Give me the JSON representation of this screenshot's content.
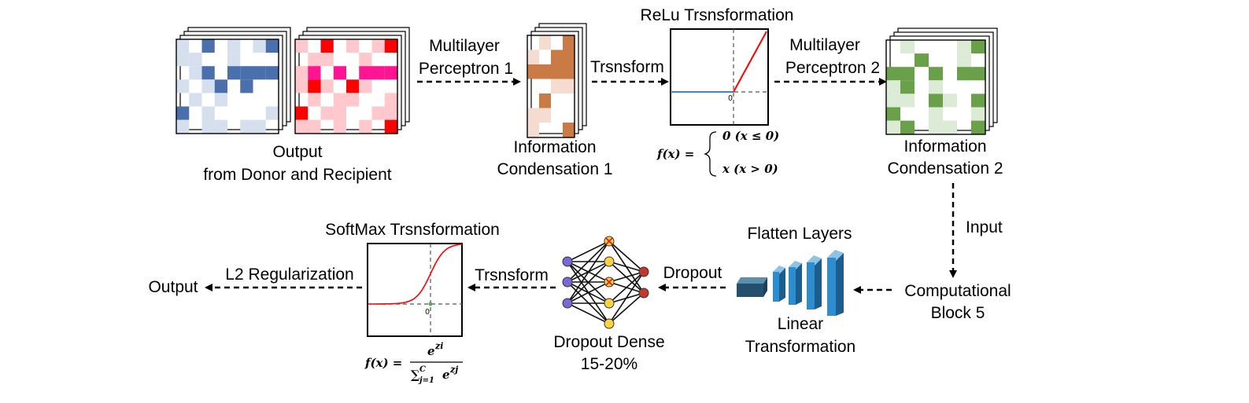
{
  "labels": {
    "output_donor_1": "Output",
    "output_donor_2": "from Donor and Recipient",
    "mlp1_1": "Multilayer",
    "mlp1_2": "Perceptron 1",
    "transform_top": "Trsnsform",
    "relu_title": "ReLu Trsnsformation",
    "mlp2_1": "Multilayer",
    "mlp2_2": "Perceptron 2",
    "info1_1": "Information",
    "info1_2": "Condensation 1",
    "info2_1": "Information",
    "info2_2": "Condensation 2",
    "input": "Input",
    "comp_1": "Computational",
    "comp_2": "Block 5",
    "flatten": "Flatten Layers",
    "linear_1": "Linear",
    "linear_2": "Transformation",
    "dropout": "Dropout",
    "dropout_dense_1": "Dropout Dense",
    "dropout_dense_2": "15-20%",
    "transform_bottom": "Trsnsform",
    "softmax_title": "SoftMax Trsnsformation",
    "l2": "L2 Regularization",
    "output": "Output",
    "zero_relu": "0",
    "zero_softmax": "0"
  },
  "relu_formula": {
    "lhs": "f(x) =",
    "case1": "0 (x ≤ 0)",
    "case2": "x (x > 0)"
  },
  "softmax_formula": {
    "lhs": "f(x) =",
    "numerator": "e",
    "numerator_sup": "zi",
    "denominator": "∑",
    "denominator_sup": "C",
    "denominator_sub": "j=1",
    "denominator_tail": "e",
    "denominator_tail_sup": "zj"
  },
  "colors": {
    "blue": "#4a6fad",
    "blue_light": "#d6dfee",
    "red": "#ff0000",
    "pink": "#ff1493",
    "pink_light": "#ffc8cc",
    "orange": "#c97a45",
    "orange_light": "#f4ddd0",
    "green": "#6aa04a",
    "green_light": "#dcebd5",
    "relu_line": "#ff0000",
    "relu_flat": "#3c87c8",
    "layer_blue": "#2e8dcf",
    "node_purple": "#7b68d6",
    "node_yellow": "#ffd23f",
    "node_red": "#c0392b"
  }
}
